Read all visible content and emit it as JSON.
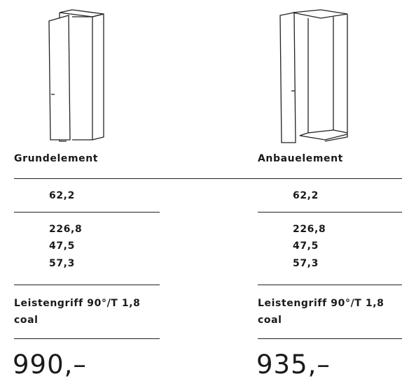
{
  "columns": [
    {
      "title": "Grundelement",
      "width": "62,2",
      "dimensions": [
        "226,8",
        "47,5",
        "57,3"
      ],
      "handle": [
        "Leistengriff 90°/T 1,8",
        "coal"
      ],
      "price": "990,–"
    },
    {
      "title": "Anbauelement",
      "width": "62,2",
      "dimensions": [
        "226,8",
        "47,5",
        "57,3"
      ],
      "handle": [
        "Leistengriff 90°/T 1,8",
        "coal"
      ],
      "price": "935,–"
    }
  ]
}
